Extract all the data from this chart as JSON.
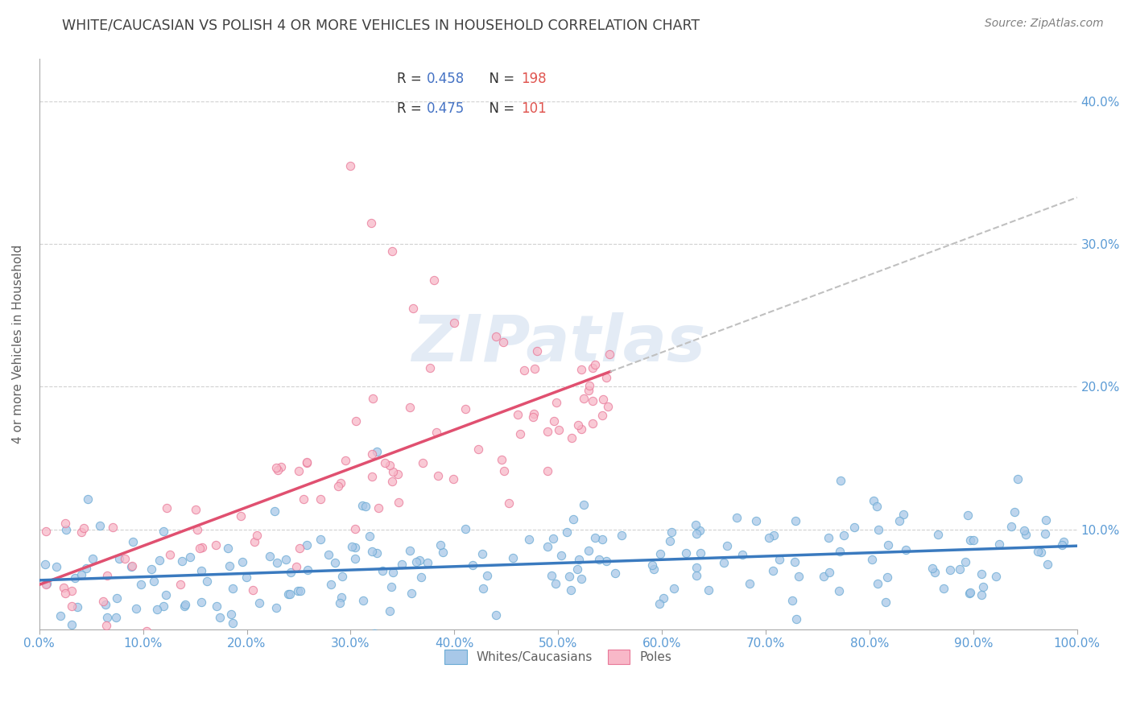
{
  "title": "WHITE/CAUCASIAN VS POLISH 4 OR MORE VEHICLES IN HOUSEHOLD CORRELATION CHART",
  "source": "Source: ZipAtlas.com",
  "ylabel": "4 or more Vehicles in Household",
  "legend_bottom": [
    "Whites/Caucasians",
    "Poles"
  ],
  "blue_R": 0.458,
  "blue_N": 198,
  "pink_R": 0.475,
  "pink_N": 101,
  "blue_color_fill": "#a8c8e8",
  "blue_color_edge": "#6aaad4",
  "pink_color_fill": "#f8b8c8",
  "pink_color_edge": "#e87898",
  "blue_line_color": "#3a7abf",
  "pink_line_color": "#e05070",
  "pink_dash_color": "#c0c0c0",
  "title_color": "#404040",
  "source_color": "#808080",
  "legend_R_color": "#4472c4",
  "legend_N_color": "#e05550",
  "legend_text_color": "#333333",
  "xmin": 0.0,
  "xmax": 1.0,
  "ymin": 0.03,
  "ymax": 0.43,
  "ytick_vals": [
    0.1,
    0.2,
    0.3,
    0.4
  ],
  "ytick_labels": [
    "10.0%",
    "20.0%",
    "30.0%",
    "40.0%"
  ],
  "background_color": "#ffffff",
  "grid_color": "#cccccc",
  "watermark": "ZIPatlas",
  "watermark_color": "#c8d8ec"
}
